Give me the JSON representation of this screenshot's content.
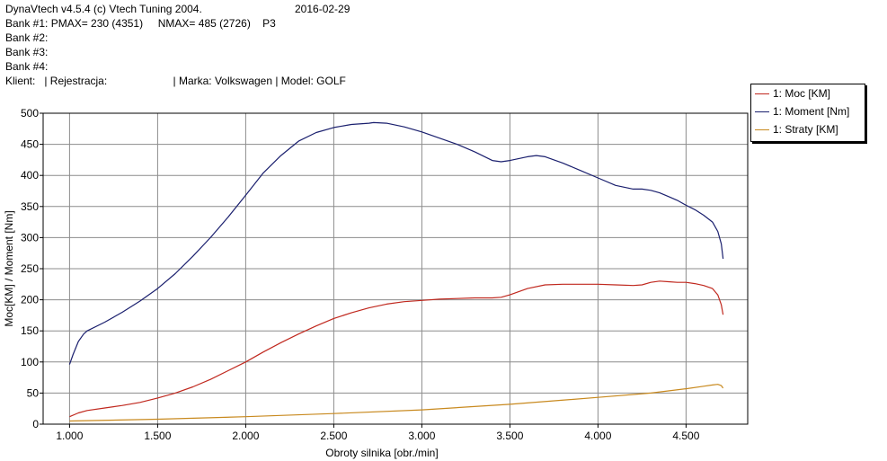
{
  "header": {
    "line1": "DynaVtech v4.5.4 (c) Vtech Tuning 2004.",
    "date": "2016-02-29",
    "bank1": "Bank #1: PMAX= 230 (4351)     NMAX= 485 (2726)    P3",
    "bank2": "Bank #2:",
    "bank3": "Bank #3:",
    "bank4": "Bank #4:",
    "client": "Klient:   | Rejestracja:                      | Marka: Volkswagen | Model: GOLF"
  },
  "chart_data": {
    "type": "line",
    "xlabel": "Obroty silnika [obr./min]",
    "ylabel": "Moc[KM] / Moment [Nm]",
    "xlim": [
      850,
      4850
    ],
    "ylim": [
      0,
      500
    ],
    "x_ticks": [
      "1.000",
      "1.500",
      "2.000",
      "2.500",
      "3.000",
      "3.500",
      "4.000",
      "4.500"
    ],
    "x_tick_values": [
      1000,
      1500,
      2000,
      2500,
      3000,
      3500,
      4000,
      4500
    ],
    "y_ticks": [
      "0",
      "50",
      "100",
      "150",
      "200",
      "250",
      "300",
      "350",
      "400",
      "450",
      "500"
    ],
    "y_tick_values": [
      0,
      50,
      100,
      150,
      200,
      250,
      300,
      350,
      400,
      450,
      500
    ],
    "grid": true,
    "legend_position": "top-right outside plot",
    "series": [
      {
        "name": "1: Moc [KM]",
        "color": "#c0281e",
        "x": [
          1000,
          1050,
          1100,
          1200,
          1300,
          1400,
          1500,
          1600,
          1700,
          1800,
          1900,
          2000,
          2100,
          2200,
          2300,
          2400,
          2500,
          2600,
          2700,
          2800,
          2900,
          3000,
          3100,
          3200,
          3300,
          3400,
          3450,
          3500,
          3600,
          3700,
          3800,
          3900,
          4000,
          4100,
          4200,
          4250,
          4300,
          4350,
          4400,
          4450,
          4500,
          4550,
          4600,
          4650,
          4680,
          4700,
          4710
        ],
        "y": [
          12,
          18,
          22,
          26,
          30,
          35,
          42,
          50,
          60,
          72,
          86,
          100,
          116,
          131,
          145,
          158,
          170,
          179,
          187,
          193,
          197,
          199,
          201,
          202,
          203,
          203,
          204,
          208,
          218,
          224,
          225,
          225,
          225,
          224,
          223,
          224,
          228,
          230,
          229,
          228,
          228,
          226,
          223,
          218,
          208,
          192,
          176
        ]
      },
      {
        "name": "1: Moment [Nm]",
        "color": "#1a1f6e",
        "x": [
          1000,
          1020,
          1050,
          1080,
          1100,
          1200,
          1300,
          1400,
          1500,
          1600,
          1700,
          1800,
          1900,
          2000,
          2100,
          2200,
          2300,
          2400,
          2500,
          2600,
          2700,
          2726,
          2800,
          2900,
          3000,
          3100,
          3200,
          3300,
          3400,
          3450,
          3500,
          3600,
          3650,
          3700,
          3800,
          3900,
          4000,
          4100,
          4200,
          4250,
          4300,
          4350,
          4400,
          4450,
          4500,
          4550,
          4600,
          4650,
          4680,
          4700,
          4710
        ],
        "y": [
          96,
          112,
          133,
          145,
          150,
          164,
          180,
          198,
          218,
          242,
          270,
          300,
          333,
          368,
          404,
          432,
          455,
          469,
          477,
          482,
          484,
          485,
          484,
          478,
          470,
          460,
          450,
          438,
          424,
          422,
          424,
          430,
          432,
          430,
          420,
          408,
          396,
          384,
          378,
          378,
          376,
          372,
          366,
          360,
          352,
          345,
          336,
          325,
          310,
          290,
          266
        ]
      },
      {
        "name": "1: Straty [KM]",
        "color": "#c8891e",
        "x": [
          1000,
          1500,
          2000,
          2500,
          3000,
          3500,
          4000,
          4300,
          4500,
          4600,
          4650,
          4680,
          4700,
          4710
        ],
        "y": [
          5,
          8,
          12,
          17,
          23,
          32,
          43,
          50,
          57,
          61,
          63,
          64,
          62,
          58
        ]
      }
    ]
  }
}
